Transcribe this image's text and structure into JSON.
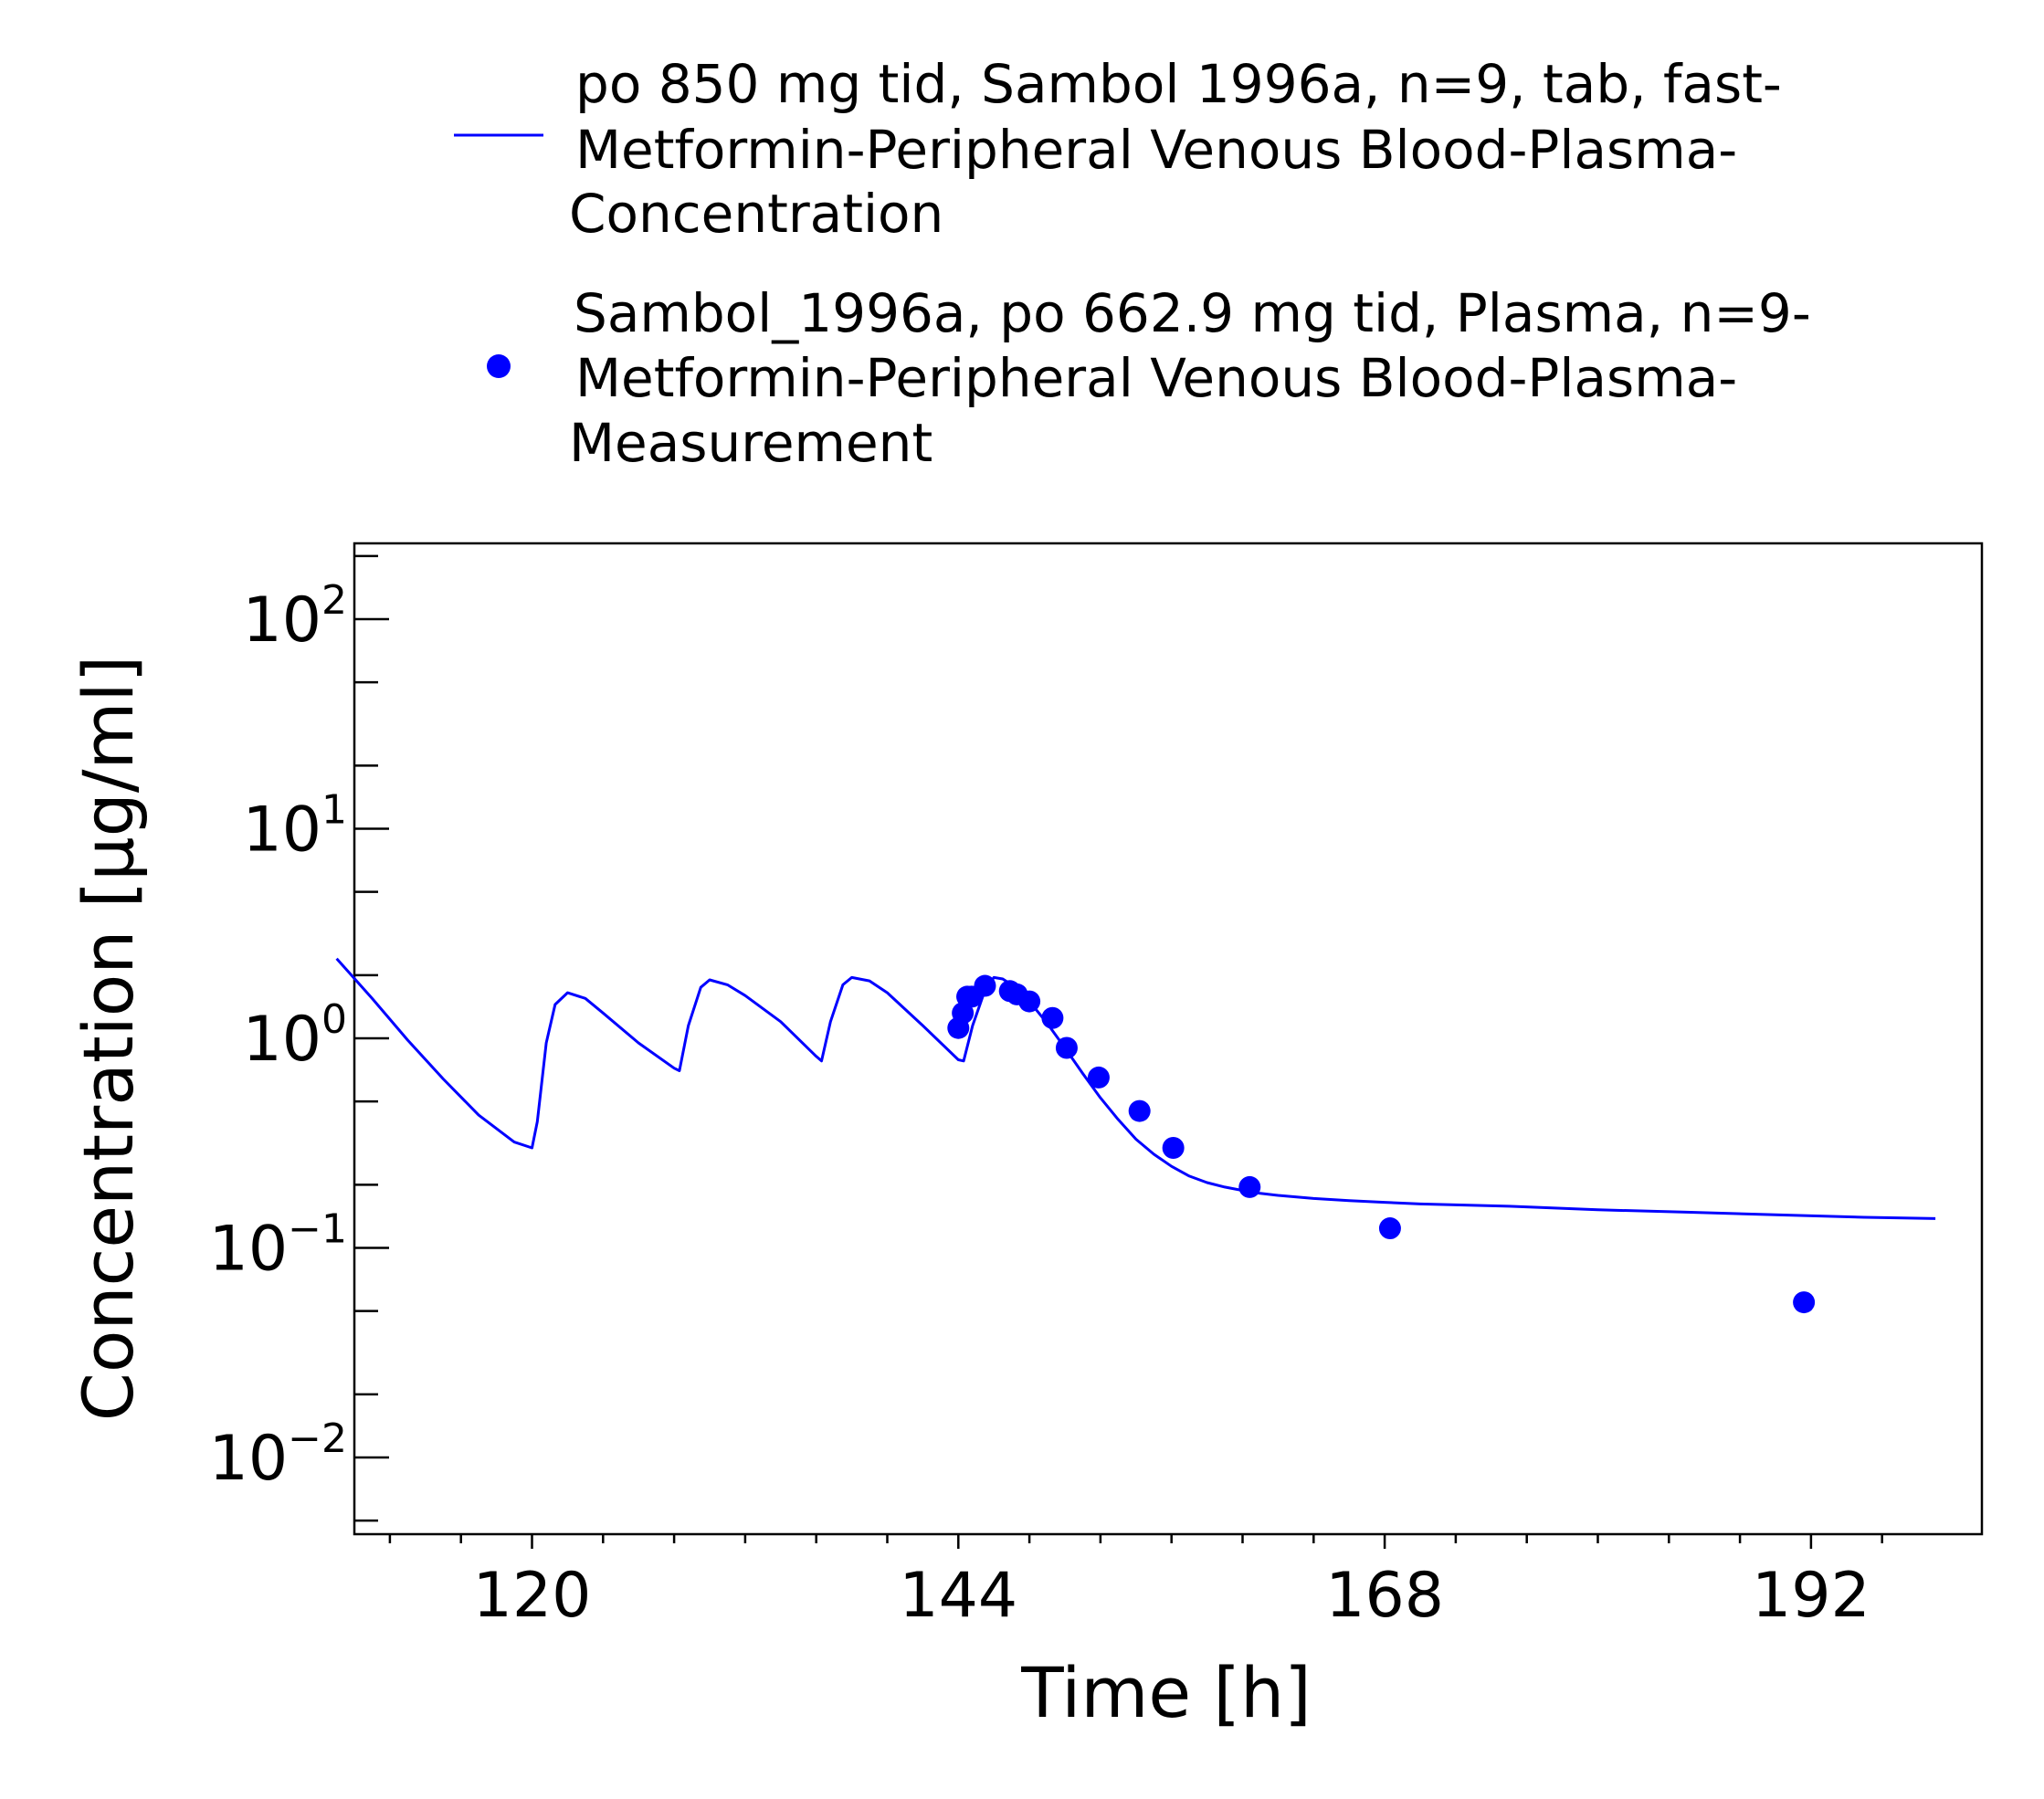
{
  "chart_data": {
    "type": "line",
    "xlabel": "Time [h]",
    "ylabel": "Concentration [µg/ml]",
    "xlim": [
      109,
      199
    ],
    "ylim": [
      0.004,
      220
    ],
    "y_scale": "log",
    "grid": false,
    "legend_position": "top",
    "x_ticks": [
      {
        "value": 120,
        "label": "120"
      },
      {
        "value": 144,
        "label": "144"
      },
      {
        "value": 168,
        "label": "168"
      },
      {
        "value": 192,
        "label": "192"
      }
    ],
    "y_ticks": [
      {
        "value": 100,
        "base": "10",
        "exp": "2"
      },
      {
        "value": 10,
        "base": "10",
        "exp": "1"
      },
      {
        "value": 1,
        "base": "10",
        "exp": "0"
      },
      {
        "value": 0.1,
        "base": "10",
        "exp": "−1"
      },
      {
        "value": 0.01,
        "base": "10",
        "exp": "−2"
      }
    ],
    "series": [
      {
        "name": "po 850 mg tid, Sambol 1996a, n=9, tab, fast-Metformin-Peripheral Venous Blood-Plasma-Concentration",
        "legend_lines": [
          "po 850 mg tid, Sambol 1996a, n=9, tab, fast-",
          "Metformin-Peripheral Venous Blood-Plasma-",
          "Concentration"
        ],
        "kind": "line",
        "color": "#0000ff",
        "x": [
          109,
          111,
          113,
          115,
          117,
          119,
          120,
          120.3,
          120.8,
          121.3,
          122,
          123,
          124,
          126,
          128,
          128.3,
          128.8,
          129.5,
          130,
          131,
          132,
          134,
          136,
          136.3,
          136.8,
          137.5,
          138,
          139,
          140,
          142,
          144,
          144.3,
          144.8,
          145.5,
          146,
          146.5,
          147,
          148,
          149,
          150,
          151,
          152,
          153,
          154,
          155,
          156,
          157,
          158,
          159,
          160,
          161,
          162,
          164,
          166,
          168,
          170,
          175,
          180,
          185,
          190,
          195,
          199
        ],
        "y": [
          2.4,
          1.55,
          0.98,
          0.64,
          0.43,
          0.32,
          0.3,
          0.4,
          0.95,
          1.45,
          1.65,
          1.55,
          1.32,
          0.95,
          0.72,
          0.7,
          1.15,
          1.75,
          1.9,
          1.8,
          1.6,
          1.2,
          0.82,
          0.78,
          1.2,
          1.8,
          1.95,
          1.88,
          1.65,
          1.15,
          0.79,
          0.78,
          1.15,
          1.7,
          1.95,
          1.92,
          1.8,
          1.5,
          1.18,
          0.9,
          0.68,
          0.52,
          0.41,
          0.33,
          0.28,
          0.245,
          0.22,
          0.205,
          0.195,
          0.188,
          0.182,
          0.178,
          0.172,
          0.168,
          0.165,
          0.162,
          0.158,
          0.152,
          0.148,
          0.144,
          0.14,
          0.138
        ]
      },
      {
        "name": "Sambol_1996a, po 662.9 mg tid, Plasma, n=9-Metformin-Peripheral Venous Blood-Plasma-Measurement",
        "legend_lines": [
          "Sambol_1996a, po 662.9 mg tid, Plasma, n=9-",
          "Metformin-Peripheral Venous Blood-Plasma-",
          "Measurement"
        ],
        "kind": "scatter",
        "color": "#0000ff",
        "x": [
          144.0,
          144.25,
          144.5,
          144.75,
          145.5,
          146.9,
          147.3,
          148.0,
          149.3,
          150.1,
          151.9,
          154.2,
          156.1,
          160.4,
          168.3,
          191.6
        ],
        "y": [
          1.12,
          1.32,
          1.58,
          1.58,
          1.78,
          1.68,
          1.62,
          1.5,
          1.25,
          0.9,
          0.65,
          0.45,
          0.3,
          0.195,
          0.124,
          0.055
        ]
      }
    ]
  }
}
